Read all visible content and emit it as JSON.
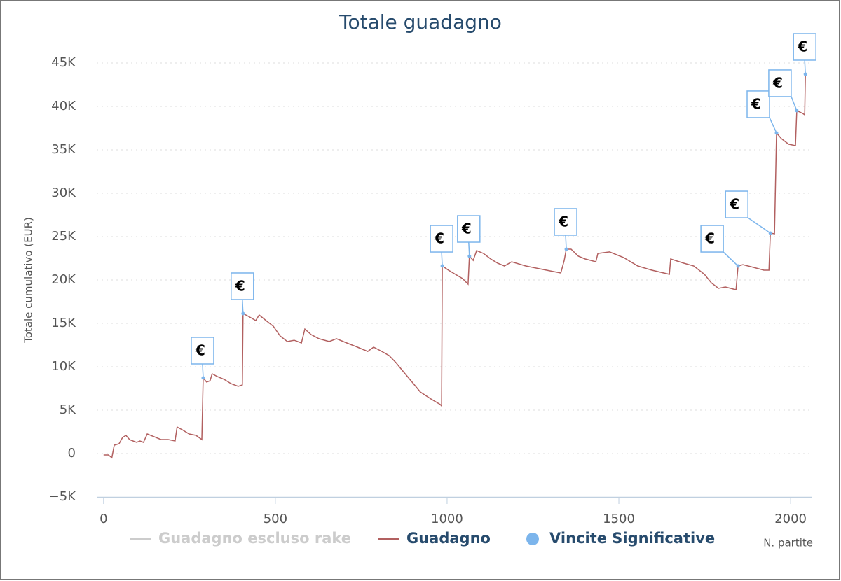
{
  "chart_data": {
    "type": "line",
    "title": "Totale guadagno",
    "y_label": "Totale cumulativo (EUR)",
    "x_label": "N. partite",
    "xlim": [
      -20,
      2061
    ],
    "ylim": [
      -5000,
      45000
    ],
    "xticks": [
      0,
      500,
      1000,
      1500,
      2000
    ],
    "yticks": [
      {
        "value": -5000,
        "label": "−5K"
      },
      {
        "value": 0,
        "label": "0"
      },
      {
        "value": 5000,
        "label": "5K"
      },
      {
        "value": 10000,
        "label": "10K"
      },
      {
        "value": 15000,
        "label": "15K"
      },
      {
        "value": 20000,
        "label": "20K"
      },
      {
        "value": 25000,
        "label": "25K"
      },
      {
        "value": 30000,
        "label": "30K"
      },
      {
        "value": 35000,
        "label": "35K"
      },
      {
        "value": 40000,
        "label": "40K"
      },
      {
        "value": 45000,
        "label": "45K"
      }
    ],
    "grid": true,
    "series": [
      {
        "name": "Guadagno escluso rake",
        "color": "#cccccc",
        "visible": false
      },
      {
        "name": "Guadagno",
        "color": "#b26060",
        "visible": true,
        "x": [
          0,
          14,
          24,
          31,
          45,
          55,
          65,
          76,
          96,
          106,
          116,
          127,
          147,
          167,
          188,
          208,
          214,
          229,
          249,
          269,
          286,
          290,
          300,
          310,
          316,
          331,
          351,
          371,
          392,
          404,
          406,
          422,
          443,
          453,
          473,
          494,
          514,
          535,
          555,
          576,
          586,
          604,
          627,
          657,
          678,
          708,
          739,
          769,
          786,
          810,
          831,
          851,
          871,
          902,
          922,
          953,
          980,
          984,
          986,
          1004,
          1024,
          1045,
          1061,
          1065,
          1076,
          1086,
          1106,
          1127,
          1147,
          1167,
          1188,
          1229,
          1269,
          1310,
          1331,
          1341,
          1347,
          1361,
          1382,
          1402,
          1433,
          1439,
          1473,
          1514,
          1555,
          1596,
          1647,
          1651,
          1688,
          1718,
          1749,
          1769,
          1790,
          1810,
          1841,
          1847,
          1861,
          1892,
          1922,
          1937,
          1941,
          1953,
          1959,
          1973,
          1994,
          2014,
          2018,
          2035,
          2041,
          2043
        ],
        "values": [
          -160,
          -160,
          -480,
          970,
          1130,
          1850,
          2100,
          1600,
          1290,
          1450,
          1290,
          2260,
          1940,
          1610,
          1610,
          1450,
          3060,
          2740,
          2260,
          2100,
          1610,
          8710,
          8230,
          8390,
          9190,
          8870,
          8550,
          8060,
          7740,
          7900,
          16130,
          15810,
          15320,
          15970,
          15320,
          14680,
          13550,
          12900,
          13060,
          12740,
          14350,
          13710,
          13230,
          12900,
          13230,
          12740,
          12260,
          11770,
          12260,
          11770,
          11290,
          10480,
          9520,
          8060,
          7100,
          6290,
          5650,
          5480,
          21610,
          21130,
          20650,
          20160,
          19520,
          22740,
          22260,
          23390,
          23060,
          22420,
          21940,
          21610,
          22100,
          21610,
          21290,
          20970,
          20810,
          22260,
          23550,
          23550,
          22740,
          22420,
          22100,
          23060,
          23230,
          22580,
          21610,
          21130,
          20650,
          22420,
          21940,
          21610,
          20650,
          19680,
          19030,
          19190,
          18870,
          21610,
          21770,
          21450,
          21130,
          21130,
          25400,
          25320,
          36940,
          36290,
          35650,
          35480,
          39520,
          39190,
          39030,
          43710
        ]
      },
      {
        "name": "Vincite Significative",
        "color": "#7cb5ec",
        "visible": true,
        "x": [
          290,
          406,
          986,
          1065,
          1347,
          1847,
          1941,
          1959,
          2018,
          2043
        ],
        "values": [
          8710,
          16130,
          21610,
          22740,
          23550,
          21610,
          25400,
          36940,
          39520,
          43710
        ],
        "titles": [
          "€",
          "€",
          "€",
          "€",
          "€",
          "€",
          "€",
          "€",
          "€",
          "€"
        ]
      }
    ]
  }
}
